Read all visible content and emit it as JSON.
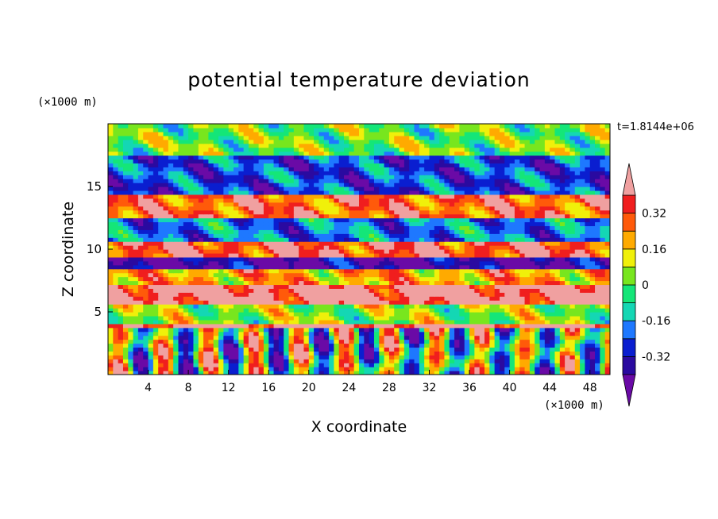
{
  "chart_data": {
    "type": "heatmap",
    "title": "potential temperature deviation",
    "xlabel": "X coordinate",
    "ylabel": "Z coordinate",
    "x_unit": "(×1000 m)",
    "y_unit": "(×1000 m)",
    "time_label": "t=1.8144e+06",
    "xlim": [
      0,
      50
    ],
    "ylim": [
      0,
      20
    ],
    "x_ticks": [
      4,
      8,
      12,
      16,
      20,
      24,
      28,
      32,
      36,
      40,
      44,
      48
    ],
    "y_ticks": [
      5,
      10,
      15
    ],
    "colorbar": {
      "labels": [
        "0.32",
        "0.16",
        "0",
        "-0.16",
        "-0.32"
      ],
      "label_values": [
        0.32,
        0.16,
        0,
        -0.16,
        -0.32
      ],
      "levels": [
        -0.4,
        -0.32,
        -0.24,
        -0.16,
        -0.08,
        0,
        0.08,
        0.16,
        0.24,
        0.32,
        0.4
      ],
      "colors": [
        "#6a0aa6",
        "#2a0aa0",
        "#0a1ed0",
        "#1e78ff",
        "#14d7b4",
        "#14e678",
        "#78e61e",
        "#f0f00a",
        "#ffaa00",
        "#ff5a0a",
        "#f01e1e",
        "#f0a0a0"
      ]
    },
    "bands": [
      {
        "zmin": 17.5,
        "zmax": 20,
        "value": 0.02
      },
      {
        "zmin": 14.5,
        "zmax": 17.5,
        "value": -0.25
      },
      {
        "zmin": 12.5,
        "zmax": 14.5,
        "value": 0.3
      },
      {
        "zmin": 10.5,
        "zmax": 12.5,
        "value": -0.2
      },
      {
        "zmin": 9.5,
        "zmax": 10.5,
        "value": 0.35
      },
      {
        "zmin": 8.3,
        "zmax": 9.5,
        "value": -0.4
      },
      {
        "zmin": 7.2,
        "zmax": 8.3,
        "value": 0.2
      },
      {
        "zmin": 5.5,
        "zmax": 7.2,
        "value": 0.45
      },
      {
        "zmin": 4.2,
        "zmax": 5.5,
        "value": 0.05
      },
      {
        "zmin": 3.6,
        "zmax": 4.2,
        "value": 0.45
      },
      {
        "zmin": 0,
        "zmax": 3.6,
        "value": 0.0
      }
    ]
  }
}
